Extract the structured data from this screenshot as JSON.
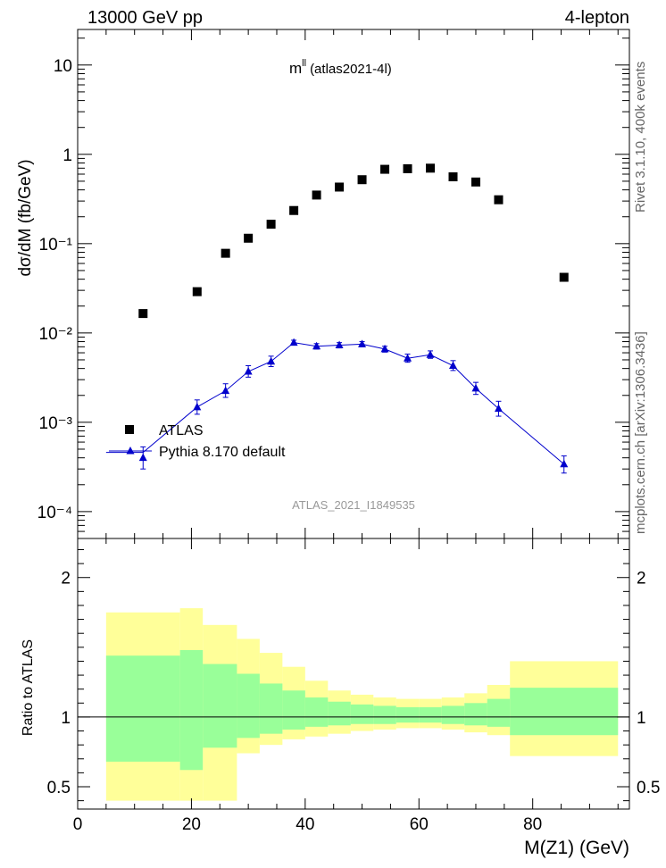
{
  "header": {
    "left": "13000 GeV pp",
    "right": "4-lepton"
  },
  "plot_title": "(atlas2021-4l)",
  "plot_title_prefix": "m",
  "plot_title_sup": "ll",
  "watermark": "ATLAS_2021_I1849535",
  "side_text": {
    "rivet": "Rivet 3.1.10,  400k events",
    "mcplots": "mcplots.cern.ch [arXiv:1306.3436]"
  },
  "chart_data": [
    {
      "type": "scatter",
      "ylabel": "dσ/dM (fb/GeV)",
      "yscale": "log",
      "xlim": [
        0,
        97
      ],
      "ylim": [
        5e-05,
        25
      ],
      "y_tick_labels": [
        "10⁻⁴",
        "10⁻³",
        "10⁻²",
        "10⁻¹",
        "1",
        "10"
      ],
      "legend": {
        "placement": "bottom-left",
        "entries": [
          "ATLAS",
          "Pythia 8.170 default"
        ]
      },
      "series": [
        {
          "name": "ATLAS",
          "marker": "square",
          "color": "#000000",
          "x": [
            11.5,
            21,
            26,
            30,
            34,
            38,
            42,
            46,
            50,
            54,
            58,
            62,
            66,
            70,
            74,
            85.5
          ],
          "y": [
            0.0165,
            0.029,
            0.078,
            0.115,
            0.165,
            0.235,
            0.35,
            0.43,
            0.52,
            0.68,
            0.69,
            0.7,
            0.56,
            0.49,
            0.31,
            0.042
          ]
        },
        {
          "name": "Pythia 8.170 default",
          "marker": "triangle",
          "color": "#0000cc",
          "x": [
            11.5,
            21,
            26,
            30,
            34,
            38,
            42,
            46,
            50,
            54,
            58,
            62,
            66,
            70,
            74,
            85.5
          ],
          "y": [
            0.0004,
            0.00148,
            0.00225,
            0.0037,
            0.0048,
            0.0078,
            0.0071,
            0.0073,
            0.0075,
            0.0066,
            0.0052,
            0.0057,
            0.0043,
            0.0024,
            0.00142,
            0.00034
          ],
          "err_up": [
            0.00013,
            0.0003,
            0.00045,
            0.0006,
            0.0007,
            0.0005,
            0.0005,
            0.0005,
            0.0005,
            0.0005,
            0.0006,
            0.0006,
            0.0006,
            0.0004,
            0.0003,
            8e-05
          ],
          "err_down": [
            0.0001,
            0.00025,
            0.00035,
            0.0005,
            0.0006,
            0.0005,
            0.0005,
            0.0005,
            0.0005,
            0.0005,
            0.0005,
            0.0005,
            0.0005,
            0.00035,
            0.00025,
            7e-05
          ],
          "line_x": [
            5,
            11.5,
            21,
            26,
            30,
            34,
            38,
            42,
            46,
            50,
            54,
            58,
            62,
            66,
            70,
            74,
            85.5
          ],
          "line_y": [
            0.00046,
            0.00046,
            0.00148,
            0.00225,
            0.0037,
            0.0048,
            0.0078,
            0.0071,
            0.0073,
            0.0075,
            0.0066,
            0.0052,
            0.0057,
            0.0043,
            0.0024,
            0.00142,
            0.00034
          ]
        }
      ]
    },
    {
      "type": "area",
      "ylabel": "Ratio to ATLAS",
      "xlabel": "M(Z1) (GeV)",
      "xlim": [
        0,
        97
      ],
      "ylim": [
        0.34,
        2.28
      ],
      "x_ticks": [
        0,
        20,
        40,
        60,
        80
      ],
      "y_ticks": [
        0.5,
        1,
        2
      ],
      "reference_line": 1,
      "bin_edges": [
        5,
        18,
        22,
        28,
        32,
        36,
        40,
        44,
        48,
        52,
        56,
        60,
        64,
        68,
        72,
        76,
        95
      ],
      "bands": [
        {
          "name": "total uncertainty",
          "color": "#ffff99",
          "low": [
            0.4,
            0.4,
            0.4,
            0.74,
            0.8,
            0.84,
            0.86,
            0.88,
            0.9,
            0.91,
            0.92,
            0.92,
            0.91,
            0.89,
            0.87,
            0.72
          ],
          "high": [
            1.75,
            1.78,
            1.66,
            1.56,
            1.46,
            1.36,
            1.26,
            1.19,
            1.16,
            1.14,
            1.13,
            1.13,
            1.14,
            1.17,
            1.23,
            1.4
          ]
        },
        {
          "name": "statistical uncertainty",
          "color": "#99ff99",
          "low": [
            0.68,
            0.62,
            0.78,
            0.85,
            0.88,
            0.91,
            0.93,
            0.94,
            0.95,
            0.95,
            0.96,
            0.96,
            0.95,
            0.94,
            0.93,
            0.87
          ],
          "high": [
            1.44,
            1.48,
            1.38,
            1.31,
            1.24,
            1.19,
            1.14,
            1.11,
            1.09,
            1.08,
            1.07,
            1.07,
            1.08,
            1.1,
            1.13,
            1.21
          ]
        }
      ]
    }
  ]
}
